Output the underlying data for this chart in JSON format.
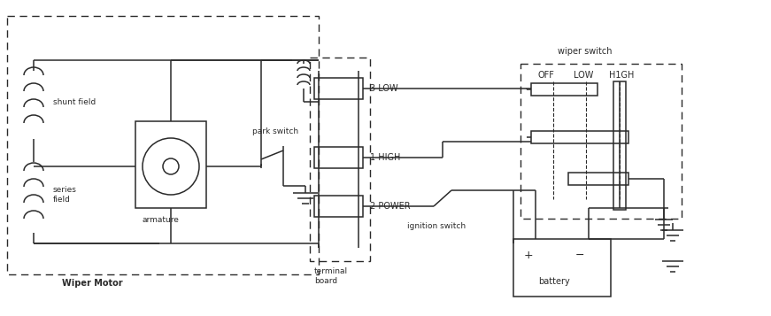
{
  "bg_color": "#ffffff",
  "line_color": "#2a2a2a",
  "lw": 1.1,
  "fig_w": 8.71,
  "fig_h": 3.57,
  "labels": {
    "wiper_motor": "Wiper Motor",
    "wiper_switch": "wiper switch",
    "shunt_field": "shunt field",
    "series_field": "series\nfield",
    "armature": "armature",
    "park_switch": "park switch",
    "terminal_board": "terminal\nboard",
    "battery": "battery",
    "ignition_switch": "ignition switch",
    "low_3": "3 LOW",
    "high_1": "1 HIGH",
    "power_2": "2 POWER",
    "off": "OFF",
    "low": "LOW",
    "high": "H1GH"
  }
}
